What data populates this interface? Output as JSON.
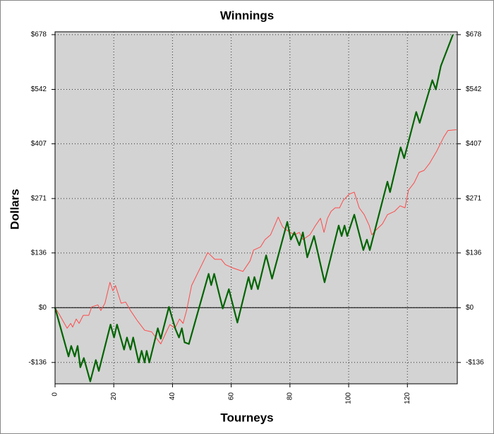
{
  "chart_data": {
    "type": "line",
    "title": "Winnings",
    "xlabel": "Tourneys",
    "ylabel": "Dollars",
    "xlim": [
      0,
      137
    ],
    "ylim": [
      -189,
      685
    ],
    "xticks": [
      0,
      20,
      40,
      60,
      80,
      100,
      120
    ],
    "yticks": [
      {
        "value": 678,
        "label": "$678"
      },
      {
        "value": 542,
        "label": "$542"
      },
      {
        "value": 407,
        "label": "$407"
      },
      {
        "value": 271,
        "label": "$271"
      },
      {
        "value": 136,
        "label": "$136"
      },
      {
        "value": 0,
        "label": "$0"
      },
      {
        "value": -136,
        "label": "-$136"
      }
    ],
    "grid": true,
    "zero_line": true,
    "right_axis": true,
    "background": "#d3d3d3",
    "series": [
      {
        "color": "#ff4a4a",
        "width": 1,
        "x": [
          0,
          1.4,
          4.1,
          5.3,
          6,
          7.2,
          8.2,
          9.6,
          11.5,
          12.5,
          14.6,
          15.6,
          17,
          18.7,
          19.7,
          20.6,
          22.5,
          24,
          25.7,
          28.1,
          30.5,
          32.9,
          36,
          37.9,
          39.1,
          40.8,
          42.4,
          43.6,
          44.8,
          46.5,
          49.2,
          52,
          54.4,
          56.6,
          58,
          60.4,
          64,
          66.4,
          67.6,
          70,
          71.5,
          73.4,
          76,
          77.5,
          78.4,
          80.1,
          81.5,
          83.2,
          84.4,
          86.8,
          88.7,
          90.4,
          91.6,
          92.8,
          94,
          95.4,
          96.9,
          98.1,
          100.2,
          101.9,
          103.6,
          105.3,
          107,
          107.9,
          109.6,
          111.5,
          113.2,
          115.6,
          117.5,
          119.2,
          120.4,
          122.3,
          124,
          125.7,
          127.6,
          130,
          132.4,
          133.8,
          136.7
        ],
        "values": [
          0,
          -16,
          -51,
          -39,
          -48,
          -28,
          -39,
          -19,
          -19,
          2,
          7,
          -7,
          11,
          63,
          42,
          55,
          11,
          14,
          -7,
          -33,
          -56,
          -60,
          -90,
          -60,
          -42,
          -51,
          -28,
          -39,
          -7,
          55,
          95,
          137,
          120,
          120,
          107,
          99,
          90,
          116,
          143,
          151,
          169,
          181,
          225,
          201,
          195,
          187,
          181,
          187,
          169,
          181,
          204,
          222,
          187,
          222,
          239,
          248,
          248,
          266,
          282,
          287,
          248,
          231,
          204,
          181,
          195,
          208,
          231,
          239,
          253,
          248,
          292,
          310,
          336,
          341,
          359,
          389,
          424,
          440,
          442
        ]
      },
      {
        "color": "#006400",
        "width": 2.2,
        "x": [
          0,
          4.6,
          5.5,
          6.7,
          7.7,
          8.6,
          9.8,
          12,
          13.9,
          14.9,
          18.9,
          20.1,
          21.1,
          23.5,
          24.5,
          25.7,
          26.6,
          28.5,
          29.5,
          30.5,
          31.2,
          32.1,
          35,
          36,
          38.8,
          40,
          41,
          42.2,
          43.2,
          44.1,
          45.6,
          52.3,
          53.2,
          54.2,
          57.1,
          59.2,
          62.1,
          65.9,
          66.9,
          67.9,
          69.1,
          71.9,
          73.9,
          79.1,
          80.3,
          81.5,
          83.2,
          84.4,
          85.9,
          88.2,
          91.8,
          96.6,
          97.6,
          98.6,
          99.5,
          101.9,
          105,
          106.2,
          107.2,
          113.2,
          114.1,
          117.7,
          118.9,
          123,
          124.2,
          128.5,
          129.7,
          131.4,
          135.5
        ],
        "values": [
          0,
          -121,
          -95,
          -121,
          -95,
          -148,
          -125,
          -183,
          -130,
          -157,
          -42,
          -74,
          -42,
          -104,
          -74,
          -104,
          -74,
          -136,
          -107,
          -136,
          -107,
          -136,
          -51,
          -77,
          2,
          -28,
          -53,
          -74,
          -51,
          -86,
          -90,
          84,
          56,
          84,
          -2,
          46,
          -37,
          76,
          46,
          76,
          46,
          130,
          72,
          213,
          169,
          187,
          155,
          187,
          125,
          178,
          63,
          204,
          178,
          204,
          178,
          231,
          143,
          169,
          143,
          313,
          287,
          398,
          371,
          486,
          459,
          565,
          542,
          600,
          678
        ]
      }
    ]
  }
}
